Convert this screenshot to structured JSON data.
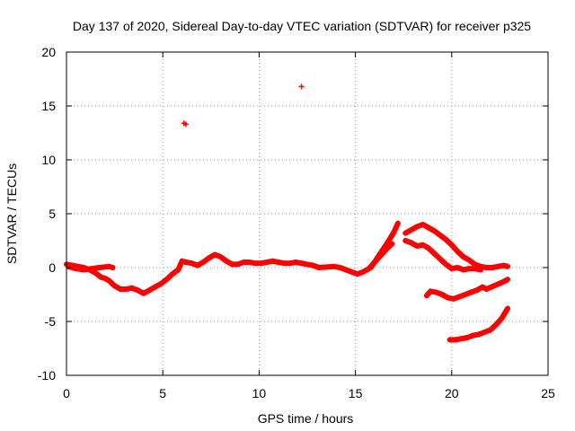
{
  "chart_data": {
    "type": "scatter",
    "title": "Day 137 of 2020, Sidereal Day-to-day VTEC variation (SDTVAR) for receiver p325",
    "xlabel": "GPS time / hours",
    "ylabel": "SDTVAR / TECUs",
    "xlim": [
      0,
      25
    ],
    "ylim": [
      -10,
      20
    ],
    "xticks": [
      0,
      5,
      10,
      15,
      20,
      25
    ],
    "yticks": [
      -10,
      -5,
      0,
      5,
      10,
      15,
      20
    ],
    "xtick_labels": [
      "0",
      "5",
      "10",
      "15",
      "20",
      "25"
    ],
    "ytick_labels": [
      "-10",
      "-5",
      "0",
      "5",
      "10",
      "15",
      "20"
    ],
    "grid": true,
    "marker": "plus",
    "series_color": "#ff0000",
    "series": [
      {
        "name": "main-track",
        "points": [
          [
            0.0,
            0.3
          ],
          [
            0.3,
            0.2
          ],
          [
            0.6,
            0.1
          ],
          [
            0.9,
            0.0
          ],
          [
            1.2,
            -0.2
          ],
          [
            1.5,
            -0.5
          ],
          [
            1.8,
            -0.9
          ],
          [
            2.0,
            -1.0
          ],
          [
            2.2,
            -1.2
          ],
          [
            2.5,
            -1.7
          ],
          [
            2.8,
            -2.0
          ],
          [
            3.1,
            -2.0
          ],
          [
            3.4,
            -1.9
          ],
          [
            3.7,
            -2.1
          ],
          [
            4.0,
            -2.4
          ],
          [
            4.3,
            -2.1
          ],
          [
            4.6,
            -1.8
          ],
          [
            4.9,
            -1.5
          ],
          [
            5.2,
            -1.1
          ],
          [
            5.5,
            -0.6
          ],
          [
            5.8,
            -0.2
          ],
          [
            6.0,
            0.6
          ],
          [
            6.2,
            0.5
          ],
          [
            6.5,
            0.4
          ],
          [
            6.8,
            0.2
          ],
          [
            7.1,
            0.5
          ],
          [
            7.4,
            0.9
          ],
          [
            7.7,
            1.2
          ],
          [
            8.0,
            1.0
          ],
          [
            8.3,
            0.6
          ],
          [
            8.6,
            0.3
          ],
          [
            8.9,
            0.3
          ],
          [
            9.2,
            0.5
          ],
          [
            9.5,
            0.5
          ],
          [
            9.8,
            0.4
          ],
          [
            10.1,
            0.4
          ],
          [
            10.4,
            0.5
          ],
          [
            10.7,
            0.6
          ],
          [
            11.0,
            0.5
          ],
          [
            11.3,
            0.4
          ],
          [
            11.6,
            0.4
          ],
          [
            11.9,
            0.5
          ],
          [
            12.2,
            0.4
          ],
          [
            12.5,
            0.3
          ],
          [
            12.8,
            0.2
          ],
          [
            13.1,
            0.0
          ],
          [
            13.9,
            0.1
          ],
          [
            14.2,
            0.0
          ],
          [
            14.5,
            -0.2
          ],
          [
            14.8,
            -0.4
          ],
          [
            15.1,
            -0.6
          ],
          [
            15.4,
            -0.4
          ],
          [
            15.7,
            -0.1
          ],
          [
            16.0,
            0.5
          ],
          [
            16.3,
            1.1
          ],
          [
            16.6,
            1.7
          ],
          [
            16.9,
            2.2
          ]
        ]
      },
      {
        "name": "early-dense-band",
        "points": [
          [
            0.1,
            0.1
          ],
          [
            0.5,
            -0.1
          ],
          [
            0.9,
            -0.2
          ],
          [
            1.3,
            -0.1
          ],
          [
            1.7,
            0.0
          ],
          [
            2.2,
            0.1
          ],
          [
            2.4,
            0.0
          ]
        ]
      },
      {
        "name": "ramp-to-peak",
        "points": [
          [
            15.8,
            0.0
          ],
          [
            16.1,
            0.8
          ],
          [
            16.4,
            1.6
          ],
          [
            16.7,
            2.4
          ],
          [
            17.0,
            3.3
          ],
          [
            17.2,
            4.1
          ]
        ]
      },
      {
        "name": "late-upper",
        "points": [
          [
            17.6,
            3.2
          ],
          [
            17.9,
            3.5
          ],
          [
            18.2,
            3.8
          ],
          [
            18.5,
            4.0
          ],
          [
            18.8,
            3.7
          ],
          [
            19.1,
            3.4
          ],
          [
            19.4,
            3.0
          ],
          [
            19.7,
            2.6
          ],
          [
            20.0,
            2.1
          ],
          [
            20.3,
            1.5
          ],
          [
            20.6,
            1.0
          ],
          [
            20.9,
            0.7
          ],
          [
            21.2,
            0.3
          ],
          [
            21.5,
            0.1
          ],
          [
            21.8,
            0.0
          ],
          [
            22.1,
            0.0
          ],
          [
            22.4,
            0.1
          ],
          [
            22.7,
            0.2
          ],
          [
            22.9,
            0.1
          ]
        ]
      },
      {
        "name": "late-second",
        "points": [
          [
            17.6,
            2.5
          ],
          [
            17.9,
            2.3
          ],
          [
            18.2,
            2.0
          ],
          [
            18.5,
            2.1
          ],
          [
            18.8,
            1.8
          ],
          [
            19.1,
            1.3
          ],
          [
            19.4,
            0.8
          ],
          [
            19.7,
            0.3
          ],
          [
            20.0,
            -0.1
          ],
          [
            20.3,
            0.0
          ],
          [
            20.6,
            -0.2
          ],
          [
            20.9,
            -0.1
          ],
          [
            21.2,
            -0.1
          ],
          [
            21.5,
            -0.2
          ]
        ]
      },
      {
        "name": "late-middle",
        "points": [
          [
            18.7,
            -2.6
          ],
          [
            18.9,
            -2.2
          ],
          [
            19.2,
            -2.3
          ],
          [
            19.5,
            -2.5
          ],
          [
            19.8,
            -2.8
          ],
          [
            20.1,
            -2.9
          ],
          [
            20.4,
            -2.7
          ],
          [
            20.7,
            -2.5
          ],
          [
            21.0,
            -2.3
          ],
          [
            21.3,
            -2.1
          ],
          [
            21.6,
            -1.8
          ],
          [
            21.8,
            -2.0
          ],
          [
            22.7,
            -1.3
          ],
          [
            22.9,
            -1.1
          ]
        ]
      },
      {
        "name": "late-lower",
        "points": [
          [
            19.9,
            -6.7
          ],
          [
            20.2,
            -6.7
          ],
          [
            20.5,
            -6.6
          ],
          [
            20.8,
            -6.5
          ],
          [
            21.1,
            -6.3
          ],
          [
            21.4,
            -6.2
          ],
          [
            21.7,
            -6.0
          ],
          [
            22.0,
            -5.8
          ],
          [
            22.3,
            -5.3
          ],
          [
            22.6,
            -4.7
          ],
          [
            22.9,
            -3.8
          ]
        ]
      },
      {
        "name": "outliers",
        "points": [
          [
            6.1,
            13.4
          ],
          [
            6.2,
            13.3
          ],
          [
            12.2,
            16.8
          ]
        ]
      }
    ]
  }
}
